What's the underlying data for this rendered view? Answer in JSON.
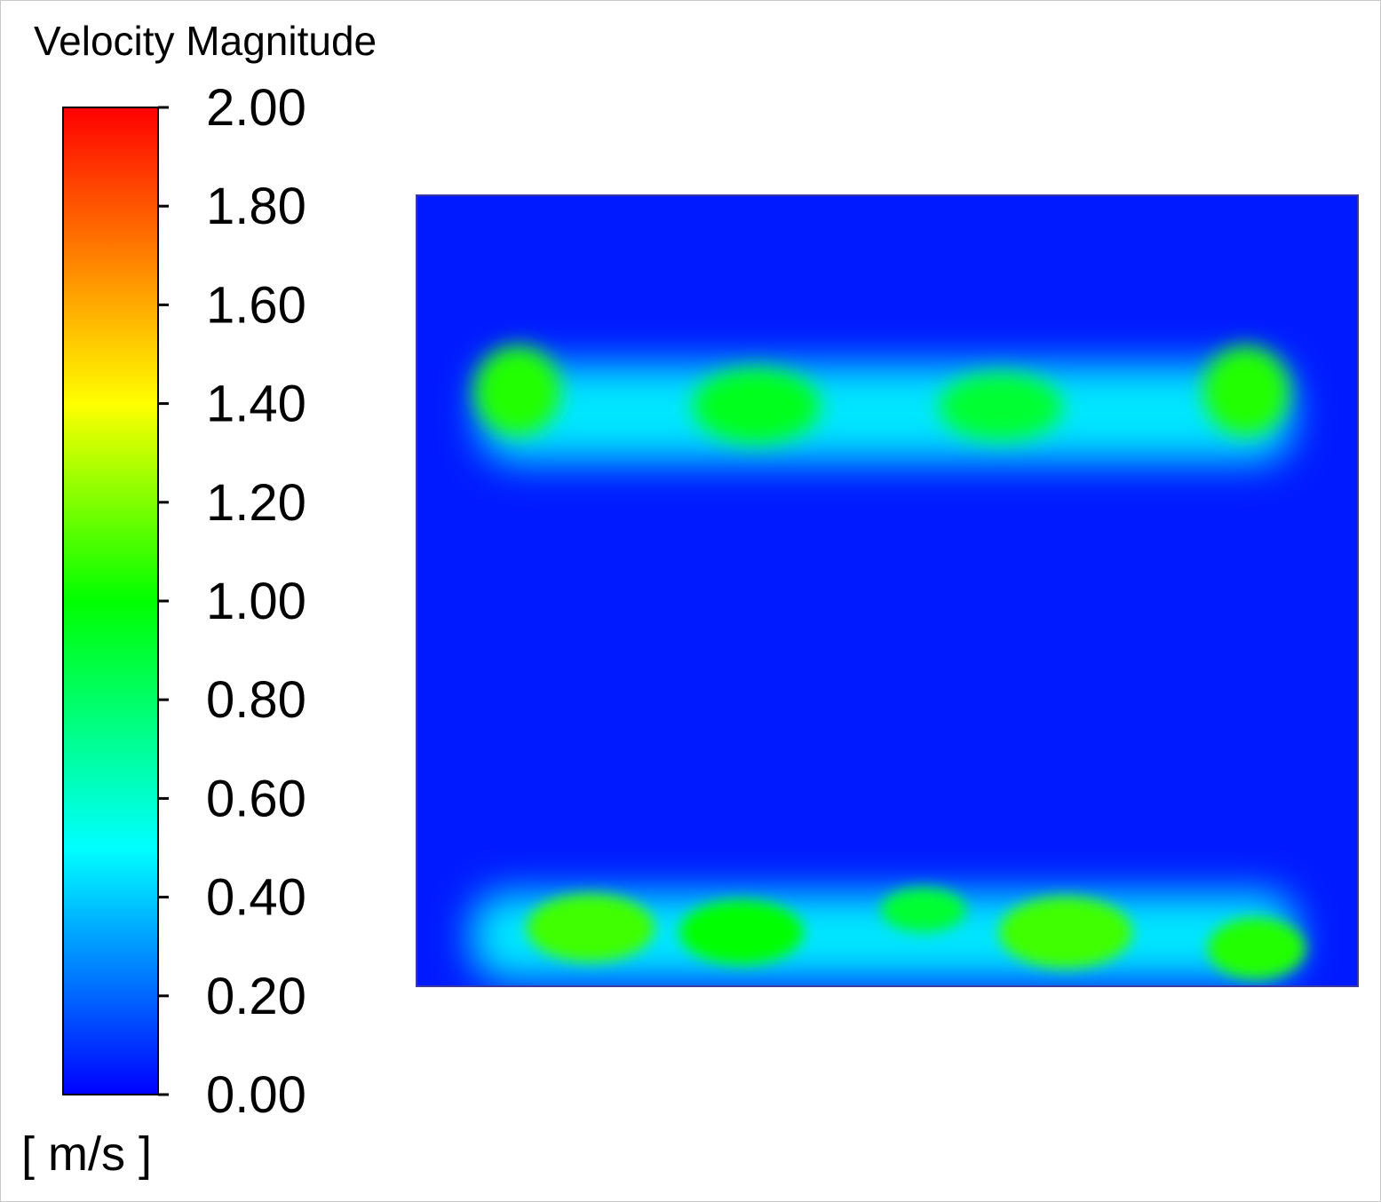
{
  "chart_data": {
    "type": "heatmap",
    "title": "Velocity Magnitude",
    "units": "[ m/s ]",
    "colorbar": {
      "min": 0.0,
      "max": 2.0,
      "placement": "left",
      "tick_values": [
        2.0,
        1.8,
        1.6,
        1.4,
        1.2,
        1.0,
        0.8,
        0.6,
        0.4,
        0.2,
        0.0
      ],
      "tick_labels": [
        "2.00",
        "1.80",
        "1.60",
        "1.40",
        "1.20",
        "1.00",
        "0.80",
        "0.60",
        "0.40",
        "0.20",
        "0.00"
      ],
      "color_stops": [
        {
          "value": 0.0,
          "color": "#0000ff"
        },
        {
          "value": 0.5,
          "color": "#00ffff"
        },
        {
          "value": 1.0,
          "color": "#00ff00"
        },
        {
          "value": 1.4,
          "color": "#ffff00"
        },
        {
          "value": 2.0,
          "color": "#ff0000"
        }
      ]
    },
    "field": {
      "background_value": 0.05,
      "upper_band": {
        "level": 0.45,
        "peaks": [
          {
            "name": "upper-peak-1",
            "value": 1.05
          },
          {
            "name": "upper-peak-2",
            "value": 0.95
          },
          {
            "name": "upper-peak-3",
            "value": 0.9
          },
          {
            "name": "upper-peak-4",
            "value": 1.05
          }
        ]
      },
      "lower_band": {
        "level": 0.45,
        "peaks": [
          {
            "name": "lower-peak-1",
            "value": 1.1
          },
          {
            "name": "lower-peak-2",
            "value": 1.0
          },
          {
            "name": "lower-peak-3",
            "value": 0.9
          },
          {
            "name": "lower-peak-4",
            "value": 1.1
          },
          {
            "name": "lower-peak-5",
            "value": 1.05
          }
        ]
      }
    }
  }
}
